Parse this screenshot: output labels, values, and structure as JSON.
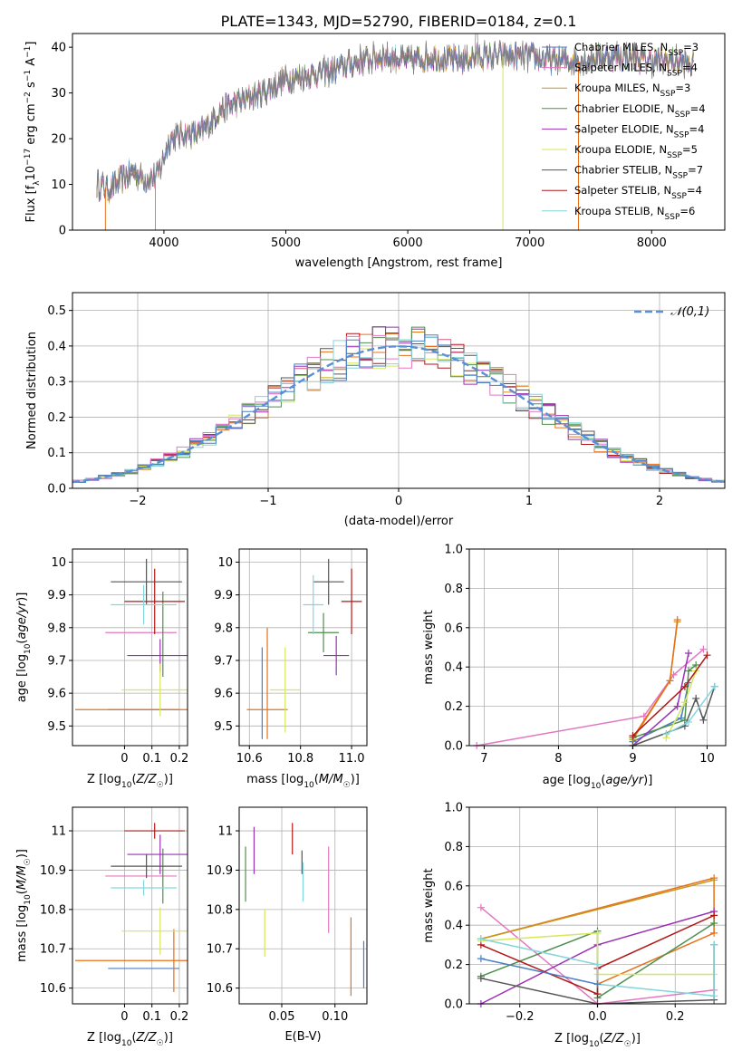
{
  "figure_title": "PLATE=1343, MJD=52790, FIBERID=0184, z=0.1",
  "legend_series": [
    {
      "name": "Chabrier MILES",
      "n": "3",
      "color": "#4a7fc4"
    },
    {
      "name": "Salpeter MILES",
      "n": "4",
      "color": "#e377c2"
    },
    {
      "name": "Kroupa MILES",
      "n": "3",
      "color": "#c8961e"
    },
    {
      "name": "Chabrier ELODIE",
      "n": "4",
      "color": "#4e8f4e"
    },
    {
      "name": "Salpeter ELODIE",
      "n": "4",
      "color": "#9b30b5"
    },
    {
      "name": "Kroupa ELODIE",
      "n": "5",
      "color": "#d7e65a"
    },
    {
      "name": "Chabrier STELIB",
      "n": "7",
      "color": "#555555"
    },
    {
      "name": "Salpeter STELIB",
      "n": "4",
      "color": "#b01818"
    },
    {
      "name": "Kroupa STELIB",
      "n": "6",
      "color": "#83d6dc"
    }
  ],
  "chart_data": [
    {
      "type": "line",
      "xlabel": "wavelength [Angstrom, rest frame]",
      "ylabel": "Flux [f_λ10^-17 erg cm^-2 s^-1 A^-1]",
      "xlim": [
        3250,
        8600
      ],
      "ylim": [
        0,
        43
      ],
      "xticks": [
        4000,
        5000,
        6000,
        7000,
        8000
      ],
      "yticks": [
        0,
        10,
        20,
        30,
        40
      ],
      "grid": false,
      "legend_position": "right",
      "continuum_knots": [
        [
          3450,
          10
        ],
        [
          3550,
          9
        ],
        [
          3650,
          11
        ],
        [
          3750,
          13
        ],
        [
          3850,
          11
        ],
        [
          3950,
          12
        ],
        [
          4050,
          20
        ],
        [
          4150,
          21
        ],
        [
          4300,
          21
        ],
        [
          4450,
          26
        ],
        [
          4600,
          28
        ],
        [
          4800,
          30
        ],
        [
          5000,
          33
        ],
        [
          5200,
          34
        ],
        [
          5400,
          35
        ],
        [
          5600,
          37
        ],
        [
          5800,
          38
        ],
        [
          6000,
          37
        ],
        [
          6200,
          38
        ],
        [
          6400,
          37
        ],
        [
          6600,
          38
        ],
        [
          6800,
          38
        ],
        [
          7000,
          38
        ],
        [
          7200,
          37
        ],
        [
          7400,
          37
        ],
        [
          7600,
          38
        ],
        [
          7800,
          38
        ],
        [
          8000,
          37
        ],
        [
          8200,
          37
        ],
        [
          8350,
          36
        ]
      ],
      "dropouts": [
        [
          3520,
          "#e8701a"
        ],
        [
          3930,
          "#c8961e"
        ],
        [
          6780,
          "#d7e65a"
        ],
        [
          7400,
          "#e8701a"
        ]
      ]
    },
    {
      "type": "histogram",
      "xlabel": "(data-model)/error",
      "ylabel": "Normed distribution",
      "xlim": [
        -2.5,
        2.5
      ],
      "ylim": [
        0,
        0.55
      ],
      "xticks": [
        -2,
        -1,
        0,
        1,
        2
      ],
      "xtick_labels": [
        "−2",
        "−1",
        "0",
        "1",
        "2"
      ],
      "yticks": [
        0,
        0.1,
        0.2,
        0.3,
        0.4,
        0.5
      ],
      "ytick_labels": [
        "0.0",
        "0.1",
        "0.2",
        "0.3",
        "0.4",
        "0.5"
      ],
      "grid": true,
      "bin_edges_range": [
        -2.6,
        2.6
      ],
      "bin_count": 52,
      "reference_curve": {
        "label": "𝒩(0,1)",
        "mean": 0,
        "sigma": 1,
        "color": "#5b8fd6"
      },
      "legend_position": "top-right"
    },
    {
      "type": "errorbar",
      "xlabel": "Z [log10(Z/Z☉)]",
      "ylabel": "age [log10(age/yr)]",
      "xlim": [
        -0.19,
        0.23
      ],
      "ylim": [
        9.44,
        10.04
      ],
      "xticks": [
        0.0,
        0.1,
        0.2
      ],
      "yticks": [
        9.5,
        9.6,
        9.7,
        9.8,
        9.9,
        10.0
      ],
      "grid": true,
      "points": [
        {
          "color": "#4a7fc4",
          "x": 0.07,
          "xerr": 0.13,
          "y": 9.55,
          "yerr": 0.0
        },
        {
          "color": "#e377c2",
          "x": 0.06,
          "xerr": 0.13,
          "y": 9.785,
          "yerr": 0.0
        },
        {
          "color": "#e8701a",
          "x": 0.18,
          "xerr": 0.36,
          "y": 9.55,
          "yerr": 0.0
        },
        {
          "color": "#4e8f4e",
          "x": 0.14,
          "xerr": 0.0,
          "y": 9.78,
          "yerr": 0.13
        },
        {
          "color": "#9b30b5",
          "x": 0.13,
          "xerr": 0.12,
          "y": 9.715,
          "yerr": 0.05
        },
        {
          "color": "#d7e65a",
          "x": 0.13,
          "xerr": 0.14,
          "y": 9.61,
          "yerr": 0.08
        },
        {
          "color": "#555555",
          "x": 0.08,
          "xerr": 0.13,
          "y": 9.94,
          "yerr": 0.07
        },
        {
          "color": "#b01818",
          "x": 0.11,
          "xerr": 0.11,
          "y": 9.88,
          "yerr": 0.1
        },
        {
          "color": "#83d6dc",
          "x": 0.07,
          "xerr": 0.12,
          "y": 9.87,
          "yerr": 0.06
        }
      ]
    },
    {
      "type": "errorbar",
      "xlabel": "mass [log10(M/M☉)]",
      "ylabel": "",
      "xlim": [
        10.56,
        11.06
      ],
      "ylim": [
        9.44,
        10.04
      ],
      "xticks": [
        10.6,
        10.8,
        11.0
      ],
      "xtick_labels": [
        "10.6",
        "10.8",
        "11.0"
      ],
      "yticks": [
        9.5,
        9.6,
        9.7,
        9.8,
        9.9,
        10.0
      ],
      "grid": true,
      "points": [
        {
          "color": "#4a7fc4",
          "x": 10.65,
          "xerr": 0.0,
          "y": 9.6,
          "yerr": 0.14
        },
        {
          "color": "#e8701a",
          "x": 10.67,
          "xerr": 0.08,
          "y": 9.55,
          "yerr": 0.0
        },
        {
          "color": "#e8701a",
          "x": 10.67,
          "xerr": 0.0,
          "y": 9.63,
          "yerr": 0.17
        },
        {
          "color": "#d7e65a",
          "x": 10.74,
          "xerr": 0.06,
          "y": 9.61,
          "yerr": 0.13
        },
        {
          "color": "#4e8f4e",
          "x": 10.89,
          "xerr": 0.06,
          "y": 9.785,
          "yerr": 0.06
        },
        {
          "color": "#555555",
          "x": 10.91,
          "xerr": 0.06,
          "y": 9.94,
          "yerr": 0.07
        },
        {
          "color": "#9b30b5",
          "x": 10.94,
          "xerr": 0.05,
          "y": 9.715,
          "yerr": 0.06
        },
        {
          "color": "#b01818",
          "x": 11.0,
          "xerr": 0.04,
          "y": 9.88,
          "yerr": 0.1
        },
        {
          "color": "#83d6dc",
          "x": 10.85,
          "xerr": 0.04,
          "y": 9.87,
          "yerr": 0.09
        }
      ]
    },
    {
      "type": "line",
      "xlabel": "age [log10(age/yr)]",
      "ylabel": "mass weight",
      "xlim": [
        6.8,
        10.25
      ],
      "ylim": [
        0,
        1
      ],
      "xticks": [
        7,
        8,
        9,
        10
      ],
      "yticks": [
        0,
        0.2,
        0.4,
        0.6,
        0.8,
        1.0
      ],
      "ytick_labels": [
        "0.0",
        "0.2",
        "0.4",
        "0.6",
        "0.8",
        "1.0"
      ],
      "grid": true,
      "series": [
        {
          "color": "#4a7fc4",
          "points": [
            [
              9.0,
              0.02
            ],
            [
              9.65,
              0.14
            ],
            [
              9.75,
              0.32
            ]
          ]
        },
        {
          "color": "#e377c2",
          "points": [
            [
              6.9,
              0.0
            ],
            [
              9.15,
              0.15
            ],
            [
              9.55,
              0.36
            ],
            [
              9.95,
              0.49
            ]
          ]
        },
        {
          "color": "#c8961e",
          "points": [
            [
              9.0,
              0.03
            ],
            [
              9.5,
              0.33
            ],
            [
              9.6,
              0.63
            ]
          ]
        },
        {
          "color": "#e8701a",
          "points": [
            [
              9.0,
              0.04
            ],
            [
              9.5,
              0.33
            ],
            [
              9.6,
              0.64
            ]
          ]
        },
        {
          "color": "#4e8f4e",
          "points": [
            [
              9.0,
              0.04
            ],
            [
              9.7,
              0.13
            ],
            [
              9.75,
              0.38
            ],
            [
              9.85,
              0.41
            ]
          ]
        },
        {
          "color": "#9b30b5",
          "points": [
            [
              9.0,
              0.0
            ],
            [
              9.6,
              0.2
            ],
            [
              9.75,
              0.47
            ]
          ]
        },
        {
          "color": "#d7e65a",
          "points": [
            [
              9.45,
              0.04
            ],
            [
              9.7,
              0.22
            ],
            [
              9.85,
              0.38
            ]
          ]
        },
        {
          "color": "#555555",
          "points": [
            [
              9.0,
              0.0
            ],
            [
              9.7,
              0.1
            ],
            [
              9.85,
              0.24
            ],
            [
              9.95,
              0.13
            ],
            [
              10.1,
              0.3
            ]
          ]
        },
        {
          "color": "#b01818",
          "points": [
            [
              9.0,
              0.05
            ],
            [
              9.7,
              0.3
            ],
            [
              10.0,
              0.46
            ]
          ]
        },
        {
          "color": "#83d6dc",
          "points": [
            [
              9.45,
              0.06
            ],
            [
              9.75,
              0.12
            ],
            [
              10.1,
              0.3
            ]
          ]
        }
      ]
    },
    {
      "type": "errorbar",
      "xlabel": "Z [log10(Z/Z☉)]",
      "ylabel": "mass [log10(M/M☉)]",
      "xlim": [
        -0.19,
        0.23
      ],
      "ylim": [
        10.56,
        11.06
      ],
      "xticks": [
        0.0,
        0.1,
        0.2
      ],
      "yticks": [
        10.6,
        10.7,
        10.8,
        10.9,
        11.0
      ],
      "grid": true,
      "points": [
        {
          "color": "#4a7fc4",
          "x": 0.07,
          "xerr": 0.13,
          "y": 10.65,
          "yerr": 0.0
        },
        {
          "color": "#e8701a",
          "x": 0.18,
          "xerr": 0.36,
          "y": 10.67,
          "yerr": 0.0
        },
        {
          "color": "#e8701a",
          "x": 0.18,
          "xerr": 0.0,
          "y": 10.67,
          "yerr": 0.08
        },
        {
          "color": "#e377c2",
          "x": 0.06,
          "xerr": 0.13,
          "y": 10.885,
          "yerr": 0.0
        },
        {
          "color": "#4e8f4e",
          "x": 0.14,
          "xerr": 0.0,
          "y": 10.885,
          "yerr": 0.07
        },
        {
          "color": "#9b30b5",
          "x": 0.13,
          "xerr": 0.12,
          "y": 10.94,
          "yerr": 0.05
        },
        {
          "color": "#d7e65a",
          "x": 0.13,
          "xerr": 0.14,
          "y": 10.745,
          "yerr": 0.06
        },
        {
          "color": "#555555",
          "x": 0.08,
          "xerr": 0.13,
          "y": 10.91,
          "yerr": 0.03
        },
        {
          "color": "#b01818",
          "x": 0.11,
          "xerr": 0.11,
          "y": 11.0,
          "yerr": 0.02
        },
        {
          "color": "#83d6dc",
          "x": 0.07,
          "xerr": 0.12,
          "y": 10.855,
          "yerr": 0.02
        }
      ]
    },
    {
      "type": "errorbar",
      "xlabel": "E(B-V)",
      "ylabel": "",
      "xlim": [
        0.01,
        0.13
      ],
      "ylim": [
        10.56,
        11.06
      ],
      "xticks": [
        0.05,
        0.1
      ],
      "xtick_labels": [
        "0.05",
        "0.10"
      ],
      "yticks": [
        10.6,
        10.7,
        10.8,
        10.9,
        11.0
      ],
      "grid": true,
      "points": [
        {
          "color": "#4e8f4e",
          "x": 0.016,
          "xerr": 0.0,
          "y": 10.89,
          "yerr": 0.07
        },
        {
          "color": "#9b30b5",
          "x": 0.024,
          "xerr": 0.0,
          "y": 10.95,
          "yerr": 0.06
        },
        {
          "color": "#d7e65a",
          "x": 0.034,
          "xerr": 0.0,
          "y": 10.74,
          "yerr": 0.06
        },
        {
          "color": "#b01818",
          "x": 0.06,
          "xerr": 0.0,
          "y": 10.98,
          "yerr": 0.04
        },
        {
          "color": "#555555",
          "x": 0.069,
          "xerr": 0.0,
          "y": 10.92,
          "yerr": 0.03
        },
        {
          "color": "#83d6dc",
          "x": 0.07,
          "xerr": 0.0,
          "y": 10.87,
          "yerr": 0.05
        },
        {
          "color": "#e377c2",
          "x": 0.094,
          "xerr": 0.0,
          "y": 10.85,
          "yerr": 0.11
        },
        {
          "color": "#e8701a",
          "x": 0.115,
          "xerr": 0.0,
          "y": 10.68,
          "yerr": 0.1
        },
        {
          "color": "#4a7fc4",
          "x": 0.127,
          "xerr": 0.0,
          "y": 10.66,
          "yerr": 0.06
        }
      ]
    },
    {
      "type": "line",
      "xlabel": "Z [log10(Z/Z☉)]",
      "ylabel": "mass weight",
      "xlim": [
        -0.33,
        0.33
      ],
      "ylim": [
        0,
        1
      ],
      "xticks": [
        -0.2,
        0.0,
        0.2
      ],
      "xtick_labels": [
        "−0.2",
        "0.0",
        "0.2"
      ],
      "yticks": [
        0,
        0.2,
        0.4,
        0.6,
        0.8,
        1.0
      ],
      "ytick_labels": [
        "0.0",
        "0.2",
        "0.4",
        "0.6",
        "0.8",
        "1.0"
      ],
      "grid": true,
      "series": [
        {
          "color": "#e8701a",
          "points": [
            [
              -0.3,
              0.33
            ],
            [
              0.3,
              0.64
            ],
            [
              0.3,
              0.36
            ],
            [
              0.0,
              0.1
            ]
          ]
        },
        {
          "color": "#c8961e",
          "points": [
            [
              -0.3,
              0.33
            ],
            [
              0.3,
              0.63
            ]
          ]
        },
        {
          "color": "#e377c2",
          "points": [
            [
              -0.3,
              0.49
            ],
            [
              0.0,
              0.0
            ],
            [
              0.3,
              0.07
            ]
          ]
        },
        {
          "color": "#9b30b5",
          "points": [
            [
              -0.3,
              0.0
            ],
            [
              0.0,
              0.3
            ],
            [
              0.3,
              0.47
            ]
          ]
        },
        {
          "color": "#4e8f4e",
          "points": [
            [
              -0.3,
              0.14
            ],
            [
              0.0,
              0.37
            ],
            [
              0.0,
              0.03
            ],
            [
              0.3,
              0.41
            ]
          ]
        },
        {
          "color": "#d7e65a",
          "points": [
            [
              -0.3,
              0.32
            ],
            [
              0.0,
              0.36
            ],
            [
              0.0,
              0.15
            ],
            [
              0.3,
              0.15
            ]
          ]
        },
        {
          "color": "#555555",
          "points": [
            [
              -0.3,
              0.13
            ],
            [
              0.0,
              0.0
            ],
            [
              0.3,
              0.02
            ],
            [
              0.3,
              0.3
            ]
          ]
        },
        {
          "color": "#b01818",
          "points": [
            [
              -0.3,
              0.3
            ],
            [
              0.0,
              0.05
            ],
            [
              0.0,
              0.18
            ],
            [
              0.3,
              0.45
            ]
          ]
        },
        {
          "color": "#83d6dc",
          "points": [
            [
              -0.3,
              0.33
            ],
            [
              0.0,
              0.2
            ],
            [
              0.0,
              0.1
            ],
            [
              0.3,
              0.04
            ],
            [
              0.3,
              0.3
            ]
          ]
        },
        {
          "color": "#4a7fc4",
          "points": [
            [
              -0.3,
              0.23
            ],
            [
              0.0,
              0.1
            ]
          ]
        }
      ]
    }
  ]
}
